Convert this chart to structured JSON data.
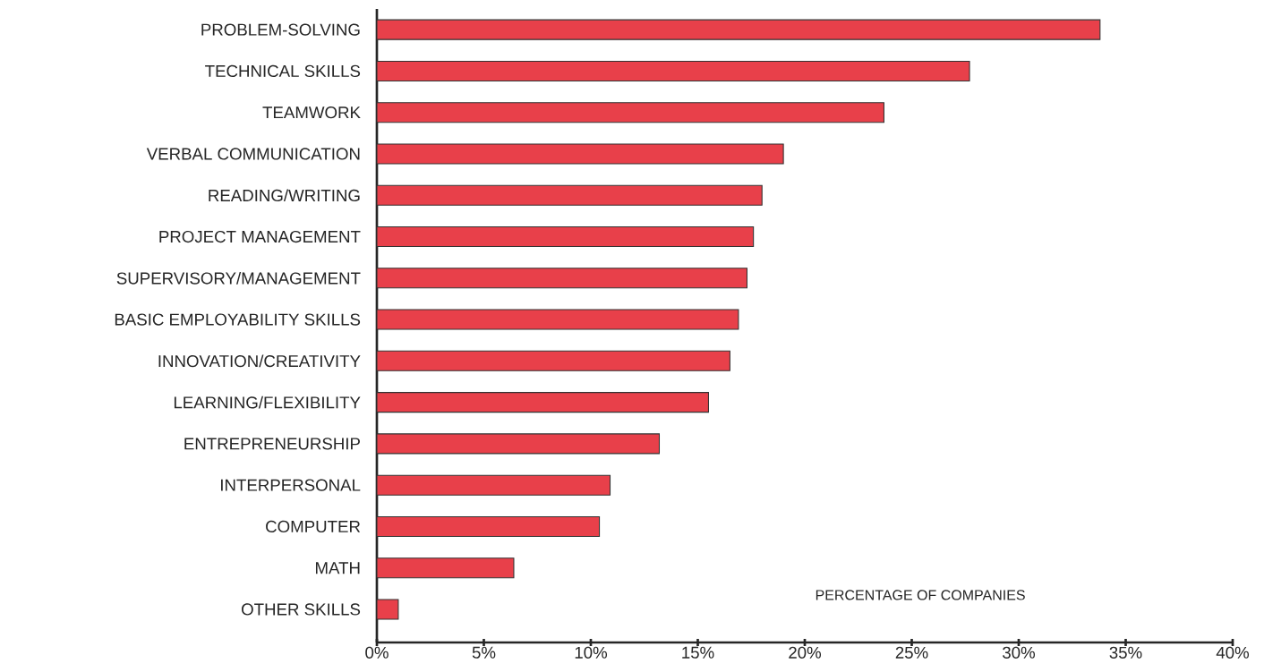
{
  "chart_data": {
    "type": "bar",
    "orientation": "horizontal",
    "xlabel": "PERCENTAGE OF COMPANIES",
    "categories": [
      "PROBLEM-SOLVING",
      "TECHNICAL SKILLS",
      "TEAMWORK",
      "VERBAL COMMUNICATION",
      "READING/WRITING",
      "PROJECT MANAGEMENT",
      "SUPERVISORY/MANAGEMENT",
      "BASIC EMPLOYABILITY SKILLS",
      "INNOVATION/CREATIVITY",
      "LEARNING/FLEXIBILITY",
      "ENTREPRENEURSHIP",
      "INTERPERSONAL",
      "COMPUTER",
      "MATH",
      "OTHER SKILLS"
    ],
    "values": [
      33.8,
      27.7,
      23.7,
      19.0,
      18.0,
      17.6,
      17.3,
      16.9,
      16.5,
      15.5,
      13.2,
      10.9,
      10.4,
      6.4,
      1.0
    ],
    "color": "#e8404a",
    "xlim": [
      0,
      40
    ],
    "xticks": [
      {
        "value": 0,
        "label": "0%"
      },
      {
        "value": 5,
        "label": "5%"
      },
      {
        "value": 10,
        "label": "10%"
      },
      {
        "value": 15,
        "label": "15%"
      },
      {
        "value": 20,
        "label": "20%"
      },
      {
        "value": 25,
        "label": "25%"
      },
      {
        "value": 30,
        "label": "30%"
      },
      {
        "value": 35,
        "label": "35%"
      },
      {
        "value": 40,
        "label": "40%"
      }
    ],
    "grid": false
  }
}
